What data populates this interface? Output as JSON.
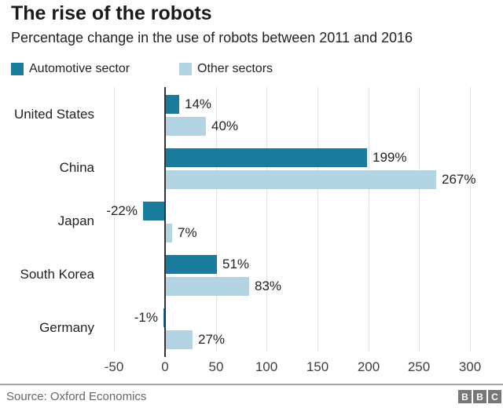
{
  "header": {
    "title": "The rise of the robots",
    "subtitle": "Percentage change in the use of robots between 2011 and 2016"
  },
  "chart_data": {
    "type": "bar",
    "orientation": "horizontal",
    "title": "The rise of the robots",
    "subtitle": "Percentage change in the use of robots between 2011 and 2016",
    "categories": [
      "United States",
      "China",
      "Japan",
      "South Korea",
      "Germany"
    ],
    "series": [
      {
        "name": "Automotive sector",
        "color": "#1a7c9c",
        "values": [
          14,
          199,
          -22,
          51,
          -1
        ]
      },
      {
        "name": "Other sectors",
        "color": "#b3d4e2",
        "values": [
          40,
          267,
          7,
          83,
          27
        ]
      }
    ],
    "value_suffix": "%",
    "xlim": [
      -50,
      300
    ],
    "xticks": [
      -50,
      0,
      50,
      100,
      150,
      200,
      250,
      300
    ],
    "grid": true,
    "legend_position": "top"
  },
  "footer": {
    "source": "Source: Oxford Economics",
    "logo_blocks": [
      "B",
      "B",
      "C"
    ],
    "logo_color": "#777777"
  }
}
